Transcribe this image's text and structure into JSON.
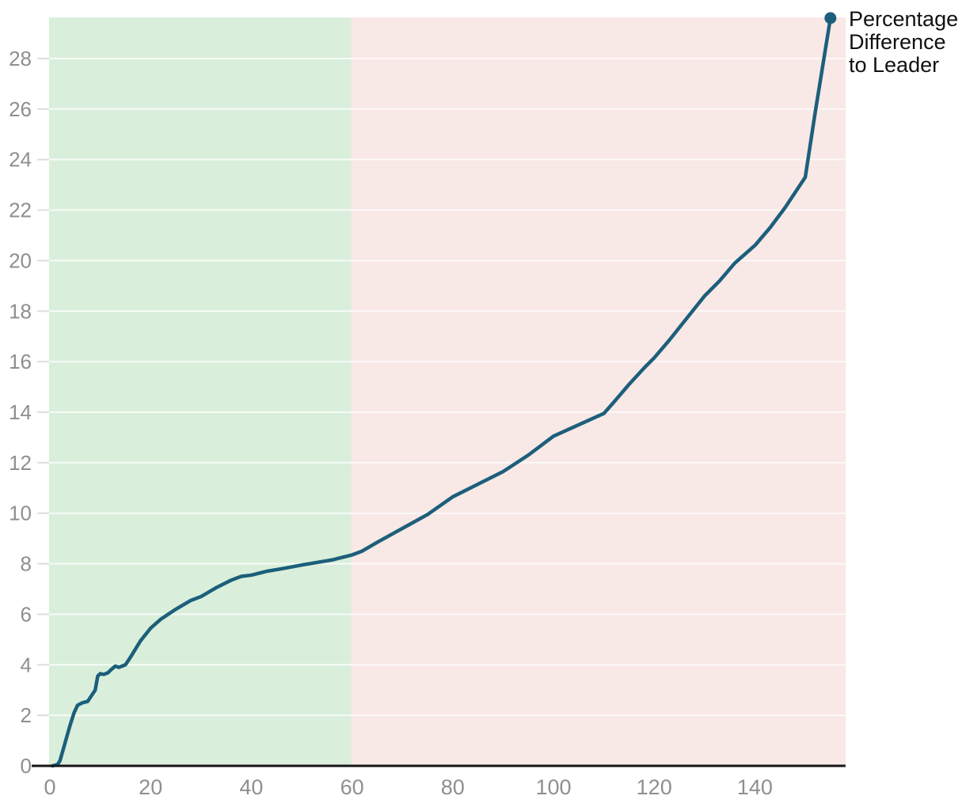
{
  "chart_data": {
    "type": "line",
    "title": "",
    "xlabel": "",
    "ylabel": "",
    "xlim": [
      0,
      158
    ],
    "ylim": [
      0,
      29.6
    ],
    "x_ticks": [
      0,
      20,
      40,
      60,
      80,
      100,
      120,
      140
    ],
    "y_ticks": [
      0,
      2,
      4,
      6,
      8,
      10,
      12,
      14,
      16,
      18,
      20,
      22,
      24,
      26,
      28
    ],
    "grid": "horizontal",
    "legend_position": "top-right-end-of-line",
    "regions": [
      {
        "name": "green-zone",
        "from": 0,
        "to": 60,
        "color": "#daefdb"
      },
      {
        "name": "red-zone",
        "from": 60,
        "to": 158,
        "color": "#f8e8e6"
      }
    ],
    "series": [
      {
        "name": "Percentage Difference to Leader",
        "label_lines": [
          "Percentage",
          "Difference",
          "to Leader"
        ],
        "color": "#1c5f7b",
        "end_marker": true,
        "points": [
          [
            0.5,
            0
          ],
          [
            1.5,
            0.05
          ],
          [
            2,
            0.2
          ],
          [
            3,
            0.9
          ],
          [
            4,
            1.6
          ],
          [
            4.8,
            2.1
          ],
          [
            5.5,
            2.4
          ],
          [
            6.5,
            2.5
          ],
          [
            7.5,
            2.55
          ],
          [
            8,
            2.7
          ],
          [
            9,
            3.0
          ],
          [
            9.5,
            3.55
          ],
          [
            10,
            3.65
          ],
          [
            10.7,
            3.62
          ],
          [
            11.5,
            3.68
          ],
          [
            12,
            3.78
          ],
          [
            13,
            3.95
          ],
          [
            13.7,
            3.9
          ],
          [
            15,
            4.0
          ],
          [
            16,
            4.3
          ],
          [
            18,
            4.95
          ],
          [
            20,
            5.45
          ],
          [
            22,
            5.8
          ],
          [
            25,
            6.2
          ],
          [
            28,
            6.55
          ],
          [
            30,
            6.7
          ],
          [
            33,
            7.05
          ],
          [
            36,
            7.35
          ],
          [
            38,
            7.5
          ],
          [
            40,
            7.55
          ],
          [
            43,
            7.7
          ],
          [
            46,
            7.8
          ],
          [
            50,
            7.95
          ],
          [
            53,
            8.05
          ],
          [
            56,
            8.15
          ],
          [
            58,
            8.25
          ],
          [
            60,
            8.35
          ],
          [
            62,
            8.5
          ],
          [
            65,
            8.85
          ],
          [
            70,
            9.4
          ],
          [
            75,
            9.95
          ],
          [
            80,
            10.65
          ],
          [
            85,
            11.15
          ],
          [
            90,
            11.65
          ],
          [
            95,
            12.3
          ],
          [
            100,
            13.05
          ],
          [
            105,
            13.5
          ],
          [
            110,
            13.95
          ],
          [
            112,
            14.4
          ],
          [
            115,
            15.1
          ],
          [
            118,
            15.75
          ],
          [
            120,
            16.15
          ],
          [
            123,
            16.85
          ],
          [
            126,
            17.6
          ],
          [
            130,
            18.6
          ],
          [
            133,
            19.2
          ],
          [
            136,
            19.9
          ],
          [
            140,
            20.6
          ],
          [
            143,
            21.3
          ],
          [
            146,
            22.1
          ],
          [
            149,
            23.0
          ],
          [
            150,
            23.3
          ],
          [
            152,
            25.9
          ],
          [
            155,
            29.6
          ]
        ]
      }
    ],
    "colors": {
      "tick_label": "#8f8f8f",
      "grid_line_inner": "#ffffff",
      "grid_tick_outer": "#dedede",
      "axis_line": "#161616",
      "legend_text": "#111111"
    }
  }
}
